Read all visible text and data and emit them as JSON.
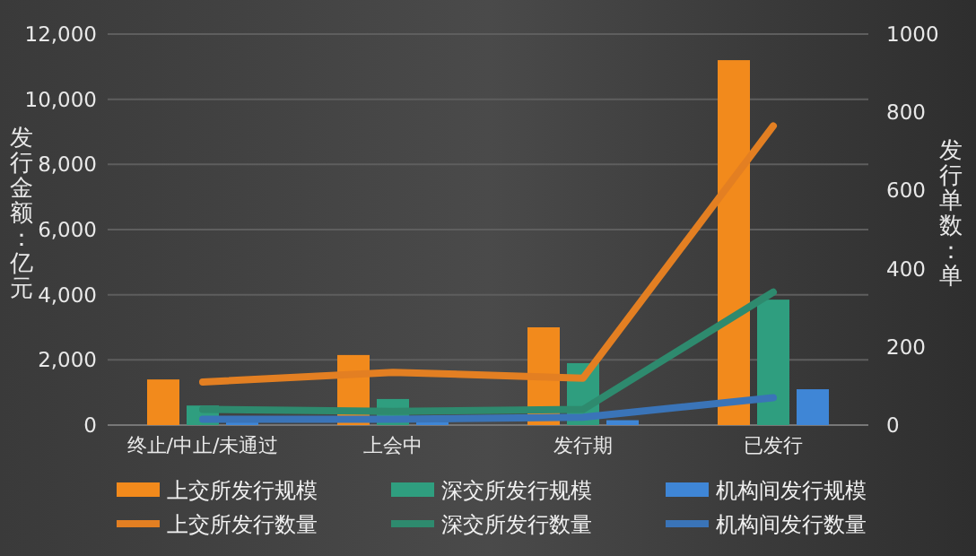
{
  "chart_data": {
    "type": "bar",
    "categories": [
      "终止/中止/未通过",
      "上会中",
      "发行期",
      "已发行"
    ],
    "series": [
      {
        "name": "上交所发行规模",
        "color": "#f28a1c",
        "values": [
          1400,
          2150,
          3000,
          11200
        ]
      },
      {
        "name": "深交所发行规模",
        "color": "#2f9e7f",
        "values": [
          600,
          800,
          1900,
          3850
        ]
      },
      {
        "name": "机构间发行规模",
        "color": "#3f86d6",
        "values": [
          100,
          100,
          150,
          1100
        ]
      },
      {
        "name": "上交所发行数量",
        "type": "line",
        "axis": "y2",
        "color": "#e37f22",
        "values": [
          110,
          135,
          120,
          765
        ]
      },
      {
        "name": "深交所发行数量",
        "type": "line",
        "axis": "y2",
        "color": "#2e8a6e",
        "values": [
          40,
          35,
          40,
          340
        ]
      },
      {
        "name": "机构间发行数量",
        "type": "line",
        "axis": "y2",
        "color": "#3a74b8",
        "values": [
          15,
          15,
          20,
          70
        ]
      }
    ],
    "ylabel": "发行金额：亿元",
    "y2label": "发行单数：单",
    "ylim": [
      0,
      12000
    ],
    "yticks": [
      0,
      {
        "value": 2000,
        "label": "2,000"
      },
      {
        "value": 4000,
        "label": "4,000"
      },
      {
        "value": 6000,
        "label": "6,000"
      },
      {
        "value": 8000,
        "label": "8,000"
      },
      {
        "value": 10000,
        "label": "10,000"
      },
      {
        "value": 12000,
        "label": "12,000"
      }
    ],
    "y2lim": [
      0,
      1000
    ],
    "y2ticks": [
      0,
      200,
      400,
      600,
      800,
      1000
    ],
    "grid": "y",
    "legend": "bottom",
    "marker": "none"
  }
}
